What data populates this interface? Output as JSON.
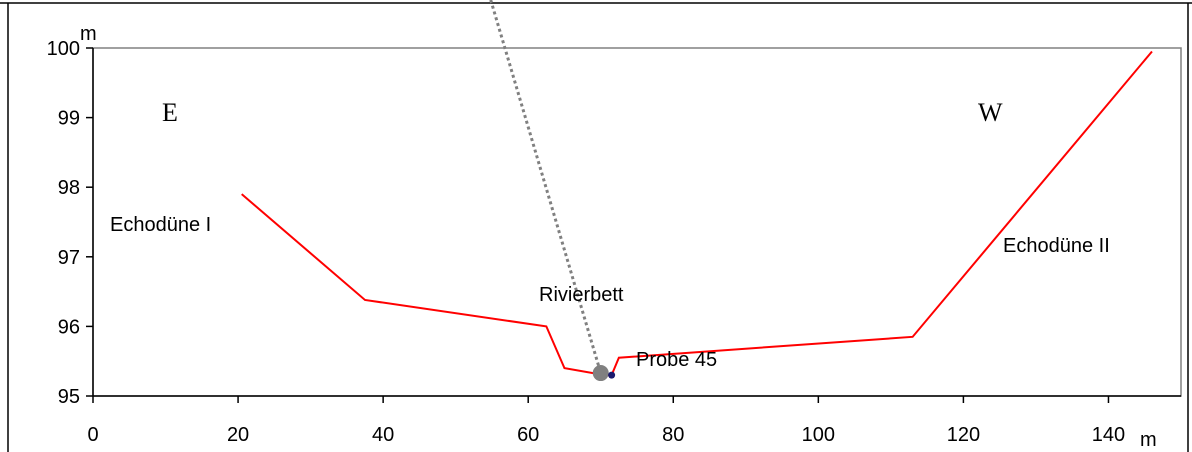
{
  "chart_data": {
    "type": "line",
    "xlabel": "m",
    "ylabel": "m",
    "xlim": [
      0,
      150
    ],
    "ylim": [
      95,
      100
    ],
    "xticks": [
      "0",
      "20",
      "40",
      "60",
      "80",
      "100",
      "120",
      "140"
    ],
    "yticks": [
      "95",
      "96",
      "97",
      "98",
      "99",
      "100"
    ],
    "grid": false,
    "series": [
      {
        "color": "#ff0000",
        "x": [
          20.5,
          37.5,
          62.5,
          65.0,
          70.5,
          71.5,
          72.5,
          113.0,
          146.0
        ],
        "y": [
          97.9,
          96.38,
          96.0,
          95.4,
          95.3,
          95.3,
          95.55,
          95.85,
          99.95
        ]
      }
    ],
    "annotations": {
      "east": "E",
      "west": "W",
      "dune_1": "Echodüne I",
      "dune_2": "Echodüne II",
      "riverbed": "Rivierbett",
      "sample": "Probe 45"
    },
    "sample_point": {
      "x": 70.0,
      "y": 95.33
    },
    "sample_small_point": {
      "x": 71.5,
      "y": 95.3
    },
    "colors": {
      "profile": "#ff0000",
      "sample_marker": "#808080",
      "small_marker": "#1a1a6e",
      "dotted_line": "#808080"
    }
  }
}
